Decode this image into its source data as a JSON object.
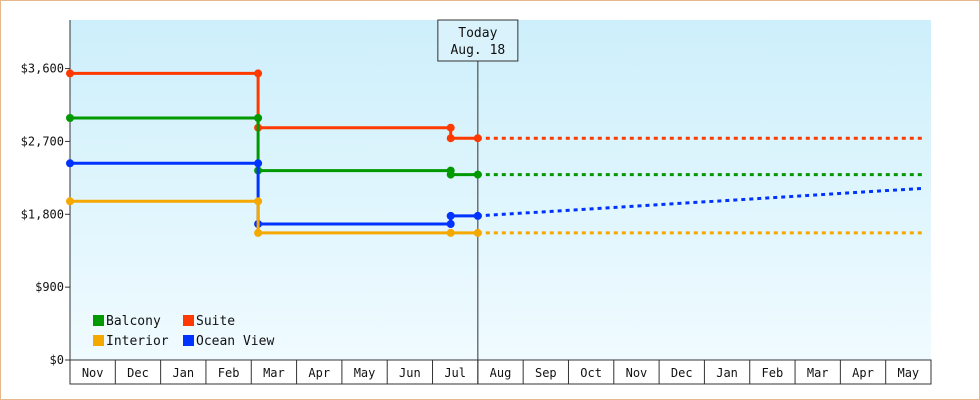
{
  "chart_data": {
    "type": "line",
    "x_categories": [
      "Nov",
      "Dec",
      "Jan",
      "Feb",
      "Mar",
      "Apr",
      "May",
      "Jun",
      "Jul",
      "Aug",
      "Sep",
      "Oct",
      "Nov",
      "Dec",
      "Jan",
      "Feb",
      "Mar",
      "Apr",
      "May"
    ],
    "y_ticks": [
      "$0",
      "$900",
      "$1,800",
      "$2,700",
      "$3,600"
    ],
    "y_tick_values": [
      0,
      900,
      1800,
      2700,
      3600
    ],
    "ylim": [
      0,
      4200
    ],
    "today": {
      "line1": "Today",
      "line2": "Aug. 18",
      "x": 9.0
    },
    "legend_placement": "bottom-left",
    "grid": false,
    "series": [
      {
        "name": "Suite",
        "color": "#ff3a00",
        "points": [
          [
            0,
            3540
          ],
          [
            4.15,
            3540
          ],
          [
            4.15,
            2870
          ],
          [
            8.4,
            2870
          ],
          [
            8.4,
            2740
          ],
          [
            9.0,
            2740
          ]
        ],
        "markers": [
          [
            0,
            3540
          ],
          [
            4.15,
            3540
          ],
          [
            4.15,
            2870
          ],
          [
            8.4,
            2870
          ],
          [
            8.4,
            2740
          ],
          [
            9.0,
            2740
          ]
        ],
        "projection": [
          [
            9.0,
            2740
          ],
          [
            18.8,
            2740
          ]
        ]
      },
      {
        "name": "Balcony",
        "color": "#009900",
        "points": [
          [
            0,
            2990
          ],
          [
            4.15,
            2990
          ],
          [
            4.15,
            2340
          ],
          [
            8.4,
            2340
          ],
          [
            8.4,
            2290
          ],
          [
            9.0,
            2290
          ]
        ],
        "markers": [
          [
            0,
            2990
          ],
          [
            4.15,
            2990
          ],
          [
            4.15,
            2340
          ],
          [
            8.4,
            2340
          ],
          [
            8.4,
            2290
          ],
          [
            9.0,
            2290
          ]
        ],
        "projection": [
          [
            9.0,
            2290
          ],
          [
            18.8,
            2290
          ]
        ]
      },
      {
        "name": "Ocean View",
        "color": "#0033ff",
        "points": [
          [
            0,
            2430
          ],
          [
            4.15,
            2430
          ],
          [
            4.15,
            1680
          ],
          [
            8.4,
            1680
          ],
          [
            8.4,
            1780
          ],
          [
            9.0,
            1780
          ]
        ],
        "markers": [
          [
            0,
            2430
          ],
          [
            4.15,
            2430
          ],
          [
            4.15,
            1680
          ],
          [
            8.4,
            1680
          ],
          [
            8.4,
            1780
          ],
          [
            9.0,
            1780
          ]
        ],
        "projection": [
          [
            9.0,
            1780
          ],
          [
            18.8,
            2120
          ]
        ]
      },
      {
        "name": "Interior",
        "color": "#f5a800",
        "points": [
          [
            0,
            1960
          ],
          [
            4.15,
            1960
          ],
          [
            4.15,
            1570
          ],
          [
            8.4,
            1570
          ],
          [
            9.0,
            1570
          ]
        ],
        "markers": [
          [
            0,
            1960
          ],
          [
            4.15,
            1960
          ],
          [
            4.15,
            1570
          ],
          [
            8.4,
            1570
          ],
          [
            9.0,
            1570
          ]
        ],
        "projection": [
          [
            9.0,
            1570
          ],
          [
            18.8,
            1570
          ]
        ]
      }
    ],
    "legend_order": [
      "Balcony",
      "Suite",
      "Interior",
      "Ocean View"
    ]
  }
}
